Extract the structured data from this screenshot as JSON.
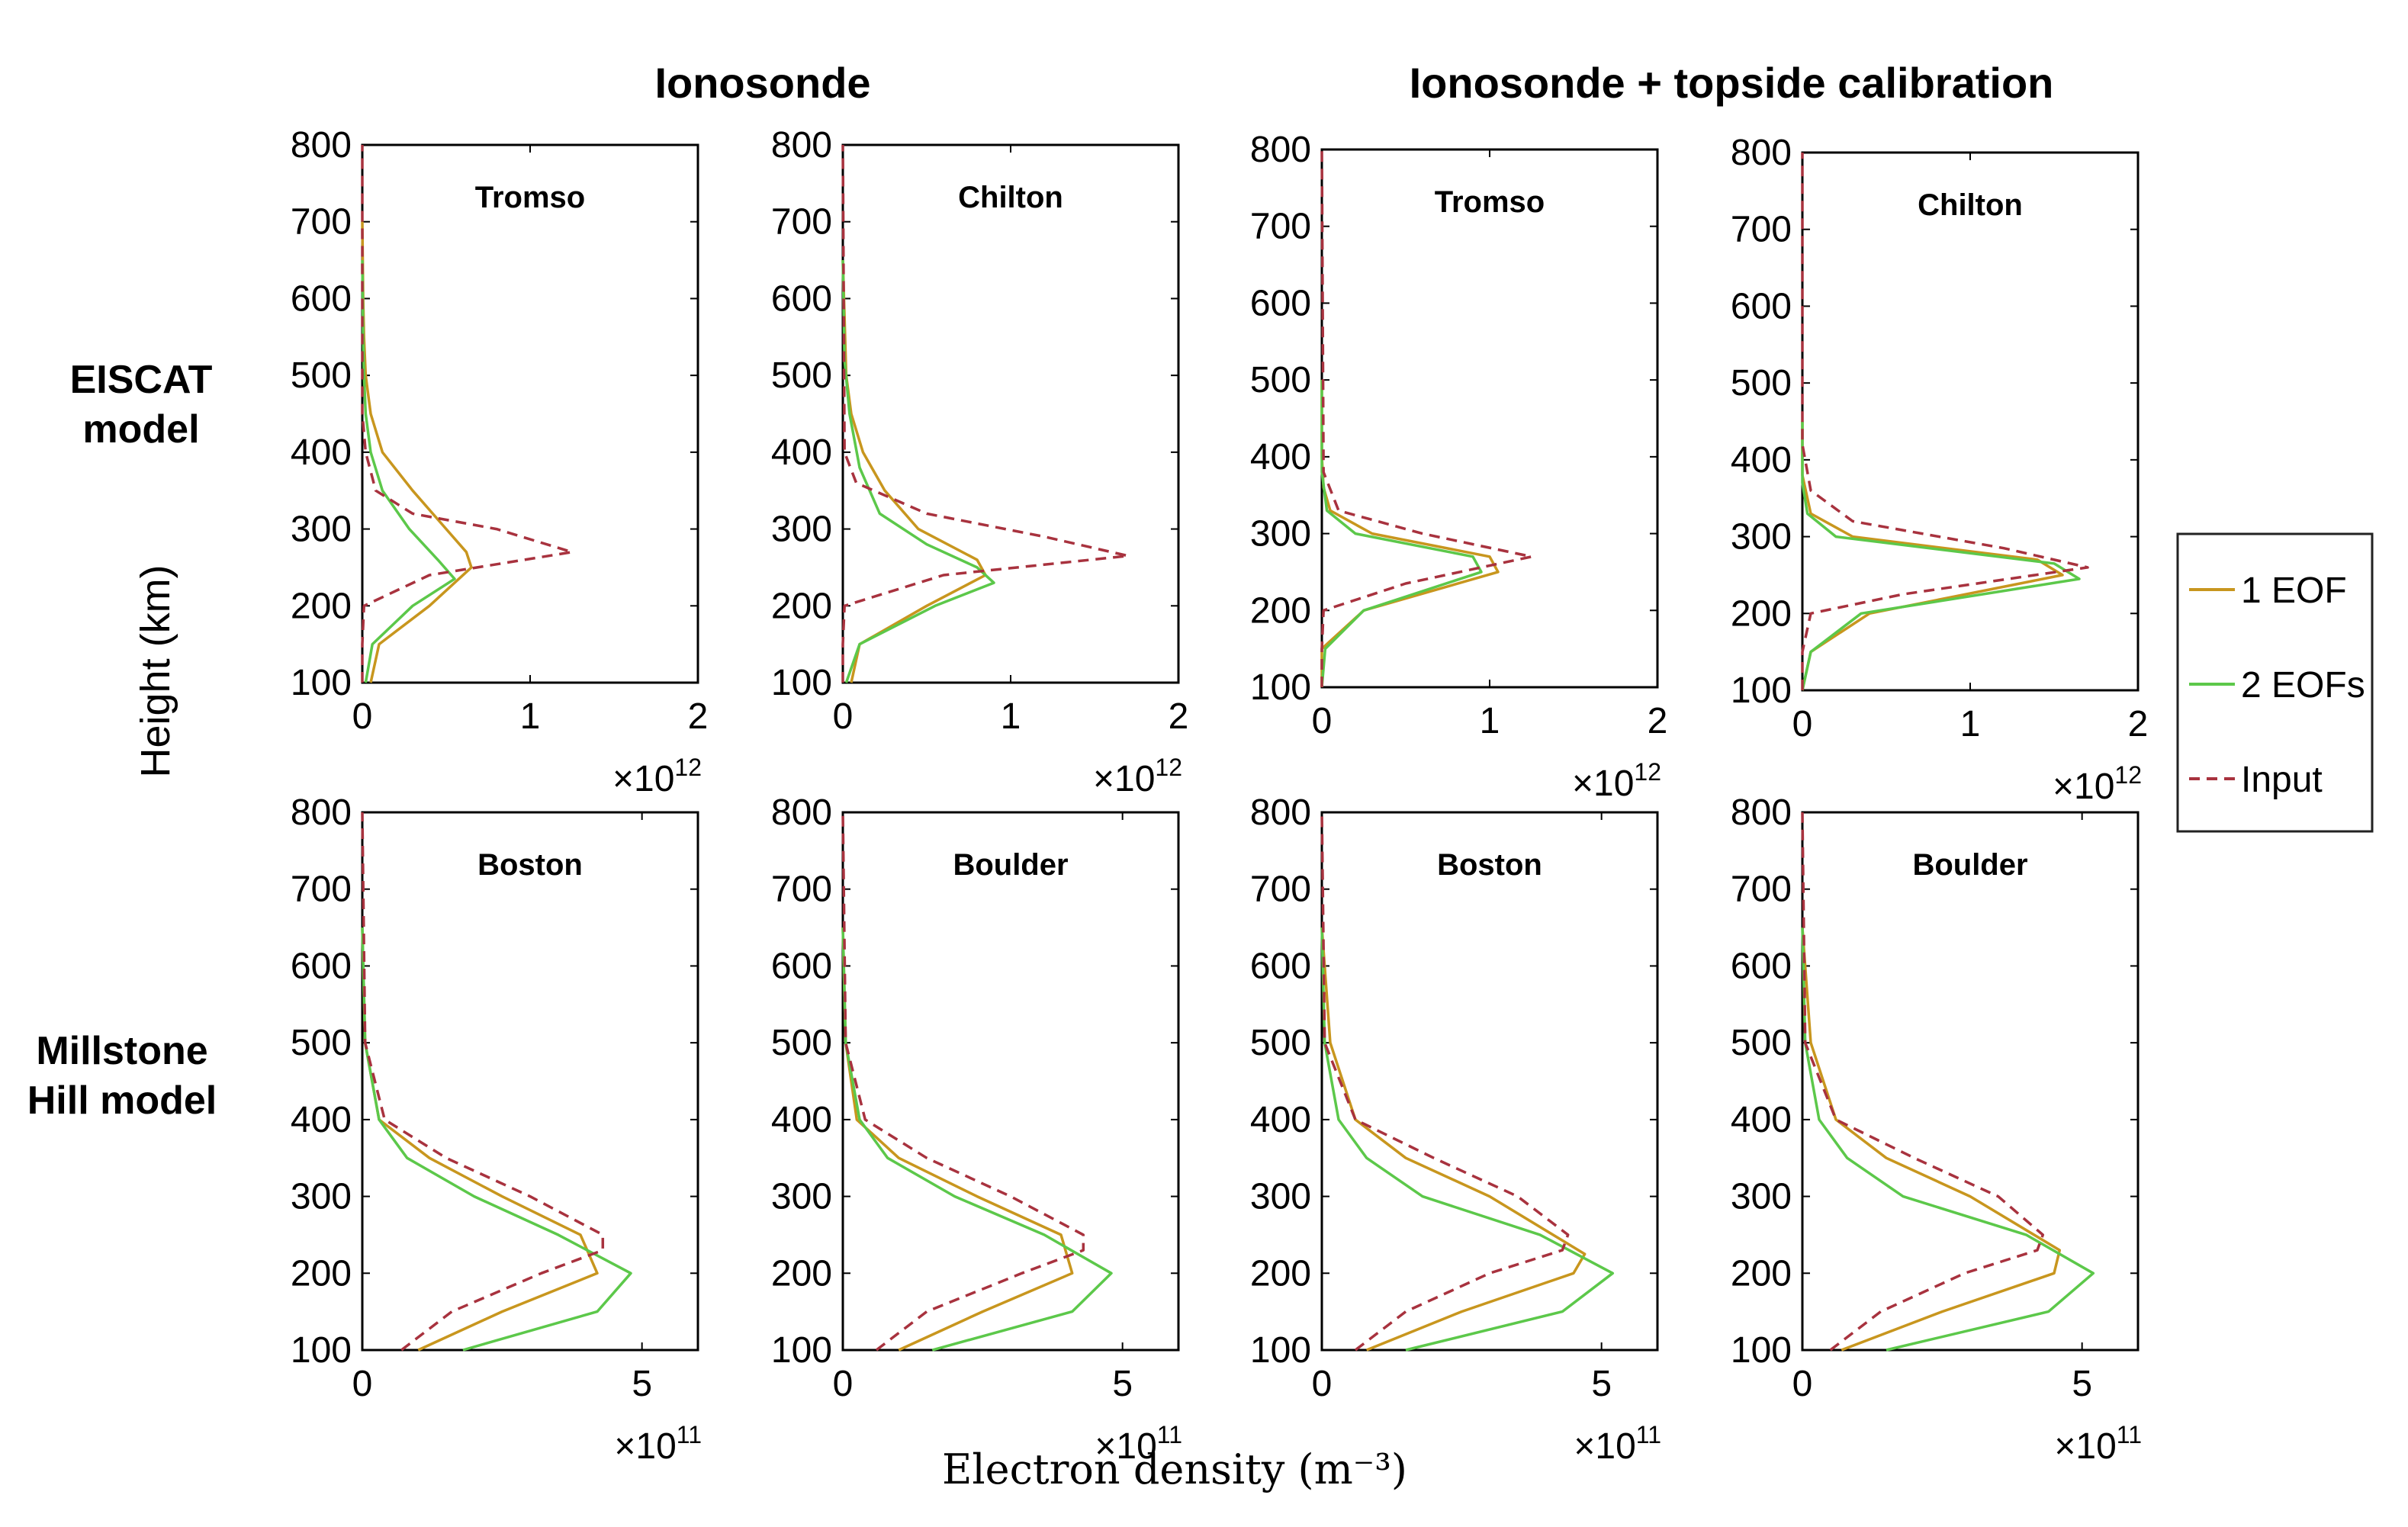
{
  "headers": {
    "col_group_1": "Ionosonde",
    "col_group_2": "Ionosonde + topside calibration",
    "row_1": [
      "EISCAT",
      "model"
    ],
    "row_2": [
      "Millstone",
      "Hill model"
    ]
  },
  "axes": {
    "ylabel": "Height (km)",
    "xlabel": "Electron density (m⁻³)",
    "y_ticks": [
      "100",
      "200",
      "300",
      "400",
      "500",
      "600",
      "700",
      "800"
    ]
  },
  "legend": {
    "items": [
      {
        "label": "1 EOF",
        "color": "#C8961E",
        "style": "solid"
      },
      {
        "label": "2 EOFs",
        "color": "#5CC84A",
        "style": "solid"
      },
      {
        "label": "Input",
        "color": "#A8323E",
        "style": "dashed"
      }
    ]
  },
  "colors": {
    "eof1": "#C8961E",
    "eof2": "#5CC84A",
    "input": "#A8323E"
  },
  "chart_data": [
    {
      "type": "line",
      "title": "Tromso",
      "xlim": [
        0,
        2
      ],
      "ylim": [
        100,
        800
      ],
      "x_tick_labels": [
        "0",
        "1",
        "2"
      ],
      "multiplier": "×10",
      "multiplier_exp": "12",
      "series": [
        {
          "name": "1 EOF",
          "x": [
            0.05,
            0.1,
            0.4,
            0.65,
            0.62,
            0.5,
            0.3,
            0.12,
            0.05,
            0.02,
            0.01,
            0.005,
            0.0
          ],
          "y": [
            100,
            150,
            200,
            250,
            270,
            300,
            350,
            400,
            450,
            500,
            550,
            600,
            700
          ]
        },
        {
          "name": "2 EOFs",
          "x": [
            0.02,
            0.06,
            0.3,
            0.55,
            0.45,
            0.28,
            0.12,
            0.05,
            0.02,
            0.01,
            0.005,
            0.0
          ],
          "y": [
            100,
            150,
            200,
            235,
            260,
            300,
            350,
            400,
            450,
            500,
            550,
            650
          ]
        },
        {
          "name": "Input",
          "x": [
            0.0,
            0.0,
            0.01,
            0.4,
            1.25,
            0.8,
            0.3,
            0.08,
            0.02,
            0.0,
            0.0
          ],
          "y": [
            100,
            150,
            200,
            240,
            270,
            300,
            320,
            350,
            400,
            450,
            800
          ]
        }
      ]
    },
    {
      "type": "line",
      "title": "Chilton",
      "xlim": [
        0,
        2
      ],
      "ylim": [
        100,
        800
      ],
      "x_tick_labels": [
        "0",
        "1",
        "2"
      ],
      "multiplier": "×10",
      "multiplier_exp": "12",
      "series": [
        {
          "name": "1 EOF",
          "x": [
            0.05,
            0.1,
            0.5,
            0.85,
            0.8,
            0.45,
            0.25,
            0.12,
            0.05,
            0.02,
            0.0
          ],
          "y": [
            100,
            150,
            200,
            240,
            260,
            300,
            350,
            400,
            450,
            500,
            650
          ]
        },
        {
          "name": "2 EOFs",
          "x": [
            0.02,
            0.1,
            0.55,
            0.9,
            0.8,
            0.5,
            0.22,
            0.1,
            0.04,
            0.01,
            0.0
          ],
          "y": [
            100,
            150,
            200,
            230,
            250,
            280,
            320,
            380,
            450,
            520,
            650
          ]
        },
        {
          "name": "Input",
          "x": [
            0.0,
            0.0,
            0.01,
            0.6,
            1.7,
            1.2,
            0.5,
            0.08,
            0.01,
            0.0
          ],
          "y": [
            100,
            150,
            200,
            240,
            265,
            290,
            320,
            360,
            400,
            800
          ]
        }
      ]
    },
    {
      "type": "line",
      "title": "Tromso",
      "xlim": [
        0,
        2
      ],
      "ylim": [
        100,
        800
      ],
      "x_tick_labels": [
        "0",
        "1",
        "2"
      ],
      "multiplier": "×10",
      "multiplier_exp": "12",
      "series": [
        {
          "name": "1 EOF",
          "x": [
            0.0,
            0.0,
            0.25,
            1.05,
            1.0,
            0.3,
            0.05,
            0.01,
            0.0,
            0.0
          ],
          "y": [
            100,
            150,
            200,
            250,
            270,
            300,
            330,
            360,
            400,
            500
          ]
        },
        {
          "name": "2 EOFs",
          "x": [
            0.0,
            0.02,
            0.25,
            0.95,
            0.9,
            0.2,
            0.03,
            0.0,
            0.0
          ],
          "y": [
            100,
            150,
            200,
            250,
            270,
            300,
            330,
            380,
            500
          ]
        },
        {
          "name": "Input",
          "x": [
            0.0,
            0.0,
            0.01,
            0.5,
            1.25,
            0.6,
            0.1,
            0.01,
            0.0
          ],
          "y": [
            100,
            150,
            200,
            235,
            270,
            300,
            330,
            380,
            800
          ]
        }
      ]
    },
    {
      "type": "line",
      "title": "Chilton",
      "xlim": [
        0,
        2
      ],
      "ylim": [
        100,
        800
      ],
      "x_tick_labels": [
        "0",
        "1",
        "2"
      ],
      "multiplier": "×10",
      "multiplier_exp": "12",
      "series": [
        {
          "name": "1 EOF",
          "x": [
            0.0,
            0.05,
            0.4,
            1.55,
            1.4,
            0.3,
            0.05,
            0.0,
            0.0
          ],
          "y": [
            100,
            150,
            200,
            250,
            270,
            300,
            330,
            380,
            450
          ]
        },
        {
          "name": "2 EOFs",
          "x": [
            0.0,
            0.05,
            0.35,
            1.65,
            1.5,
            0.2,
            0.03,
            0.0,
            0.0
          ],
          "y": [
            100,
            150,
            200,
            245,
            265,
            300,
            330,
            370,
            450
          ]
        },
        {
          "name": "Input",
          "x": [
            0.0,
            0.0,
            0.05,
            0.6,
            1.7,
            1.2,
            0.3,
            0.05,
            0.0,
            0.0
          ],
          "y": [
            100,
            150,
            200,
            225,
            260,
            285,
            320,
            360,
            420,
            800
          ]
        }
      ]
    },
    {
      "type": "line",
      "title": "Boston",
      "xlim": [
        0,
        6
      ],
      "ylim": [
        100,
        800
      ],
      "x_tick_labels": [
        "0",
        "5"
      ],
      "x_tick_values": [
        0,
        5
      ],
      "multiplier": "×10",
      "multiplier_exp": "11",
      "series": [
        {
          "name": "1 EOF",
          "x": [
            1.0,
            2.5,
            4.2,
            3.9,
            2.5,
            1.2,
            0.3,
            0.05,
            0.0
          ],
          "y": [
            100,
            150,
            200,
            250,
            300,
            350,
            400,
            500,
            650
          ]
        },
        {
          "name": "2 EOFs",
          "x": [
            1.8,
            4.2,
            4.8,
            3.5,
            2.0,
            0.8,
            0.3,
            0.05,
            0.0
          ],
          "y": [
            100,
            150,
            200,
            250,
            300,
            350,
            400,
            500,
            650
          ]
        },
        {
          "name": "Input",
          "x": [
            0.7,
            1.6,
            3.2,
            4.3,
            4.3,
            3.0,
            1.5,
            0.4,
            0.05,
            0.0
          ],
          "y": [
            100,
            150,
            200,
            230,
            250,
            300,
            350,
            400,
            500,
            800
          ]
        }
      ]
    },
    {
      "type": "line",
      "title": "Boulder",
      "xlim": [
        0,
        6
      ],
      "ylim": [
        100,
        800
      ],
      "x_tick_labels": [
        "0",
        "5"
      ],
      "x_tick_values": [
        0,
        5
      ],
      "multiplier": "×10",
      "multiplier_exp": "11",
      "series": [
        {
          "name": "1 EOF",
          "x": [
            1.0,
            2.5,
            4.1,
            3.9,
            2.4,
            1.0,
            0.25,
            0.05,
            0.0
          ],
          "y": [
            100,
            150,
            200,
            250,
            300,
            350,
            400,
            500,
            650
          ]
        },
        {
          "name": "2 EOFs",
          "x": [
            1.6,
            4.1,
            4.8,
            3.6,
            2.0,
            0.8,
            0.3,
            0.05,
            0.0
          ],
          "y": [
            100,
            150,
            200,
            250,
            300,
            350,
            400,
            500,
            650
          ]
        },
        {
          "name": "Input",
          "x": [
            0.6,
            1.5,
            3.2,
            4.3,
            4.3,
            3.0,
            1.5,
            0.4,
            0.05,
            0.0
          ],
          "y": [
            100,
            150,
            200,
            230,
            250,
            300,
            350,
            400,
            500,
            800
          ]
        }
      ]
    },
    {
      "type": "line",
      "title": "Boston",
      "xlim": [
        0,
        6
      ],
      "ylim": [
        100,
        800
      ],
      "x_tick_labels": [
        "0",
        "5"
      ],
      "x_tick_values": [
        0,
        5
      ],
      "multiplier": "×10",
      "multiplier_exp": "11",
      "series": [
        {
          "name": "1 EOF",
          "x": [
            0.8,
            2.5,
            4.5,
            4.7,
            3.0,
            1.5,
            0.6,
            0.15,
            0.0
          ],
          "y": [
            100,
            150,
            200,
            225,
            300,
            350,
            400,
            500,
            650
          ]
        },
        {
          "name": "2 EOFs",
          "x": [
            1.5,
            4.3,
            5.2,
            3.9,
            1.8,
            0.8,
            0.3,
            0.05,
            0.0
          ],
          "y": [
            100,
            150,
            200,
            250,
            300,
            350,
            400,
            500,
            650
          ]
        },
        {
          "name": "Input",
          "x": [
            0.6,
            1.5,
            3.0,
            4.3,
            4.4,
            3.5,
            2.0,
            0.6,
            0.05,
            0.0
          ],
          "y": [
            100,
            150,
            200,
            230,
            250,
            300,
            350,
            400,
            500,
            800
          ]
        }
      ]
    },
    {
      "type": "line",
      "title": "Boulder",
      "xlim": [
        0,
        6
      ],
      "ylim": [
        100,
        800
      ],
      "x_tick_labels": [
        "0",
        "5"
      ],
      "x_tick_values": [
        0,
        5
      ],
      "multiplier": "×10",
      "multiplier_exp": "11",
      "series": [
        {
          "name": "1 EOF",
          "x": [
            0.7,
            2.5,
            4.5,
            4.6,
            3.0,
            1.5,
            0.6,
            0.15,
            0.0
          ],
          "y": [
            100,
            150,
            200,
            230,
            300,
            350,
            400,
            500,
            650
          ]
        },
        {
          "name": "2 EOFs",
          "x": [
            1.5,
            4.4,
            5.2,
            4.0,
            1.8,
            0.8,
            0.3,
            0.05,
            0.0
          ],
          "y": [
            100,
            150,
            200,
            250,
            300,
            350,
            400,
            500,
            650
          ]
        },
        {
          "name": "Input",
          "x": [
            0.5,
            1.4,
            2.9,
            4.2,
            4.3,
            3.5,
            2.0,
            0.6,
            0.05,
            0.0
          ],
          "y": [
            100,
            150,
            200,
            230,
            250,
            300,
            350,
            400,
            500,
            800
          ]
        }
      ]
    }
  ]
}
